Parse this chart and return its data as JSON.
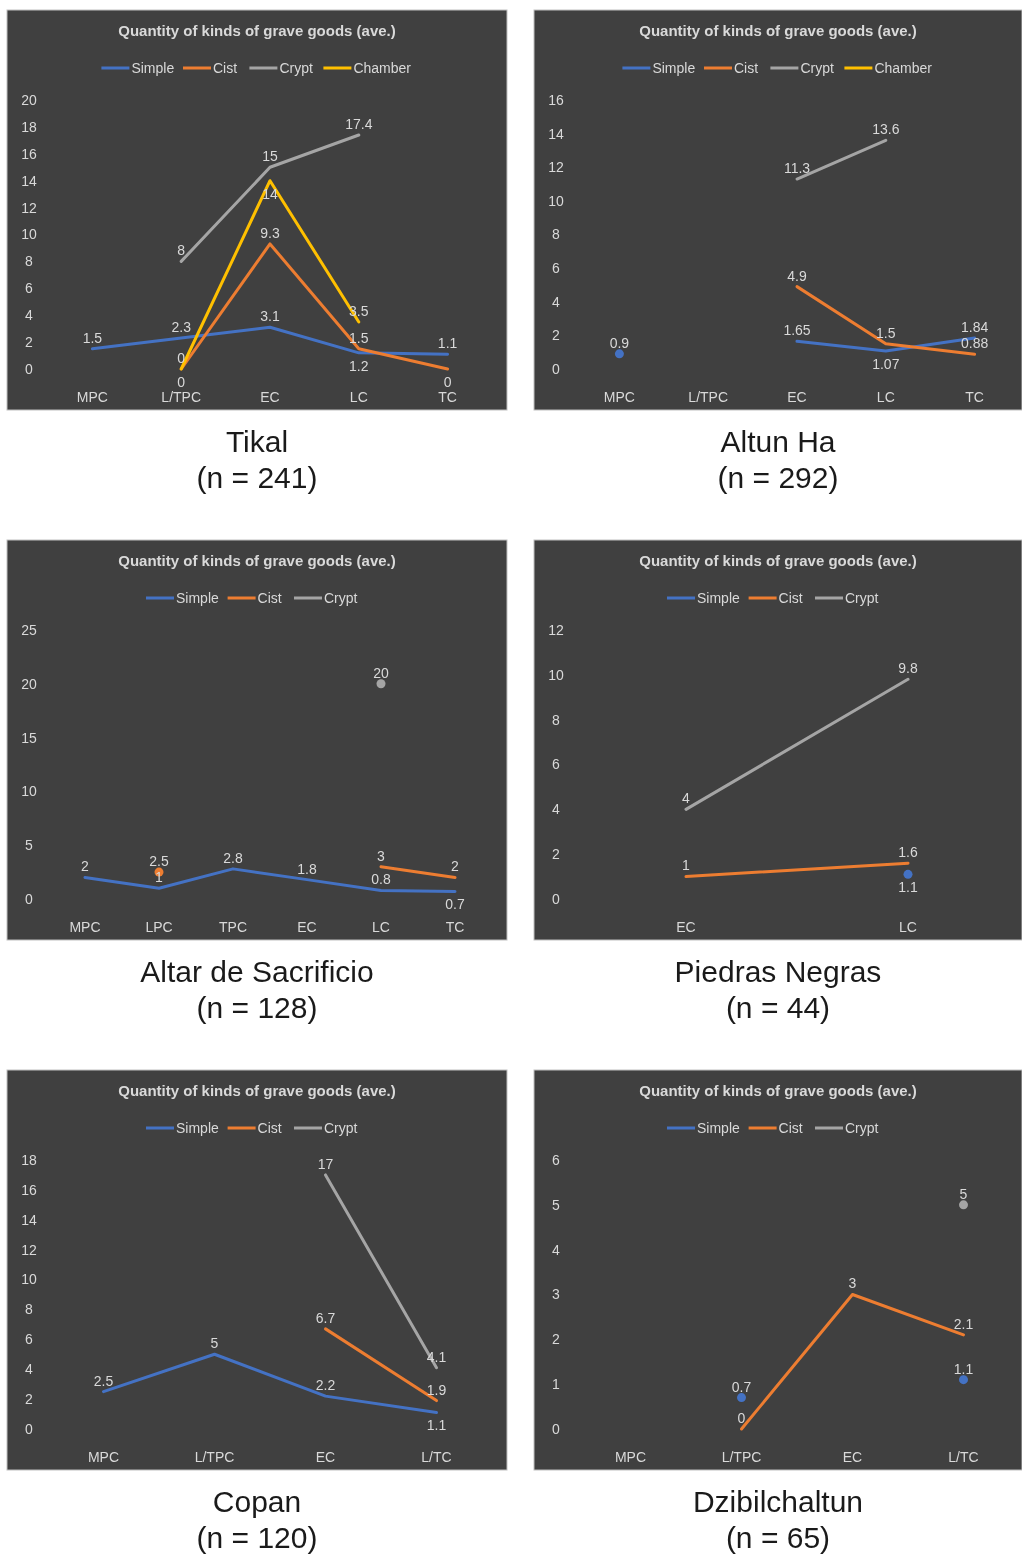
{
  "chart_data": [
    {
      "type": "line",
      "title": "Quantity of kinds of grave goods (ave.)",
      "annotations": [
        "Tikal",
        "(n = 241)"
      ],
      "categories": [
        "MPC",
        "L/TPC",
        "EC",
        "LC",
        "TC"
      ],
      "ylim": [
        0,
        20
      ],
      "yticks": [
        0,
        2,
        4,
        6,
        8,
        10,
        12,
        14,
        16,
        18,
        20
      ],
      "legend": "top",
      "data_labels": true,
      "grid": false,
      "series": [
        {
          "name": "Simple",
          "color": "#4472c4",
          "values": [
            1.5,
            2.3,
            3.1,
            1.2,
            1.1
          ]
        },
        {
          "name": "Cist",
          "color": "#ed7d31",
          "values": [
            null,
            0,
            9.3,
            1.5,
            0
          ]
        },
        {
          "name": "Crypt",
          "color": "#a5a5a5",
          "values": [
            null,
            8,
            15,
            17.4,
            null
          ]
        },
        {
          "name": "Chamber",
          "color": "#ffc000",
          "values": [
            null,
            0,
            14,
            3.5,
            null
          ]
        }
      ]
    },
    {
      "type": "line",
      "title": "Quantity of kinds of grave goods (ave.)",
      "annotations": [
        "Altun Ha",
        "(n = 292)"
      ],
      "categories": [
        "MPC",
        "L/TPC",
        "EC",
        "LC",
        "TC"
      ],
      "ylim": [
        0,
        16
      ],
      "yticks": [
        0,
        2,
        4,
        6,
        8,
        10,
        12,
        14,
        16
      ],
      "legend": "top",
      "data_labels": true,
      "grid": false,
      "series": [
        {
          "name": "Simple",
          "color": "#4472c4",
          "values": [
            0.9,
            null,
            1.65,
            1.07,
            1.84
          ]
        },
        {
          "name": "Cist",
          "color": "#ed7d31",
          "values": [
            null,
            null,
            4.9,
            1.5,
            0.88
          ]
        },
        {
          "name": "Crypt",
          "color": "#a5a5a5",
          "values": [
            null,
            null,
            11.3,
            13.6,
            null
          ]
        },
        {
          "name": "Chamber",
          "color": "#ffc000",
          "values": [
            null,
            null,
            null,
            null,
            null
          ]
        }
      ]
    },
    {
      "type": "line",
      "title": "Quantity of kinds of grave goods (ave.)",
      "annotations": [
        "Altar de Sacrificio",
        "(n = 128)"
      ],
      "categories": [
        "MPC",
        "LPC",
        "TPC",
        "EC",
        "LC",
        "TC"
      ],
      "ylim": [
        0,
        25
      ],
      "yticks": [
        0,
        5,
        10,
        15,
        20,
        25
      ],
      "legend": "top",
      "data_labels": true,
      "grid": false,
      "series": [
        {
          "name": "Simple",
          "color": "#4472c4",
          "values": [
            2,
            1,
            2.8,
            1.8,
            0.8,
            0.7
          ]
        },
        {
          "name": "Cist",
          "color": "#ed7d31",
          "values": [
            null,
            2.5,
            null,
            null,
            3,
            2
          ]
        },
        {
          "name": "Crypt",
          "color": "#a5a5a5",
          "values": [
            null,
            null,
            null,
            null,
            20,
            null
          ],
          "marker": "circle"
        }
      ]
    },
    {
      "type": "line",
      "title": "Quantity of kinds of grave goods (ave.)",
      "annotations": [
        "Piedras Negras",
        "(n = 44)"
      ],
      "categories": [
        "EC",
        "LC"
      ],
      "ylim": [
        0,
        12
      ],
      "yticks": [
        0,
        2,
        4,
        6,
        8,
        10,
        12
      ],
      "legend": "top",
      "data_labels": true,
      "grid": false,
      "series": [
        {
          "name": "Simple",
          "color": "#4472c4",
          "values": [
            null,
            1.1
          ],
          "marker": "circle"
        },
        {
          "name": "Cist",
          "color": "#ed7d31",
          "values": [
            1,
            1.6
          ]
        },
        {
          "name": "Crypt",
          "color": "#a5a5a5",
          "values": [
            4,
            9.8
          ]
        }
      ]
    },
    {
      "type": "line",
      "title": "Quantity of kinds of grave goods (ave.)",
      "annotations": [
        "Copan",
        "(n = 120)"
      ],
      "categories": [
        "MPC",
        "L/TPC",
        "EC",
        "L/TC"
      ],
      "ylim": [
        0,
        18
      ],
      "yticks": [
        0,
        2,
        4,
        6,
        8,
        10,
        12,
        14,
        16,
        18
      ],
      "legend": "top",
      "data_labels": true,
      "grid": false,
      "series": [
        {
          "name": "Simple",
          "color": "#4472c4",
          "values": [
            2.5,
            5,
            2.2,
            1.1
          ]
        },
        {
          "name": "Cist",
          "color": "#ed7d31",
          "values": [
            null,
            null,
            6.7,
            1.9
          ]
        },
        {
          "name": "Crypt",
          "color": "#a5a5a5",
          "values": [
            null,
            null,
            17,
            4.1
          ]
        }
      ]
    },
    {
      "type": "line",
      "title": "Quantity of kinds of grave goods (ave.)",
      "annotations": [
        "Dzibilchaltun",
        "(n = 65)"
      ],
      "categories": [
        "MPC",
        "L/TPC",
        "EC",
        "L/TC"
      ],
      "ylim": [
        0,
        6
      ],
      "yticks": [
        0,
        1,
        2,
        3,
        4,
        5,
        6
      ],
      "legend": "top",
      "data_labels": true,
      "grid": false,
      "series": [
        {
          "name": "Simple",
          "color": "#4472c4",
          "values": [
            null,
            0.7,
            null,
            1.1
          ],
          "type": "scatter",
          "marker": "circle"
        },
        {
          "name": "Cist",
          "color": "#ed7d31",
          "values": [
            null,
            0,
            3,
            2.1
          ]
        },
        {
          "name": "Crypt",
          "color": "#a5a5a5",
          "values": [
            null,
            null,
            null,
            5
          ],
          "marker": "circle"
        }
      ]
    }
  ]
}
